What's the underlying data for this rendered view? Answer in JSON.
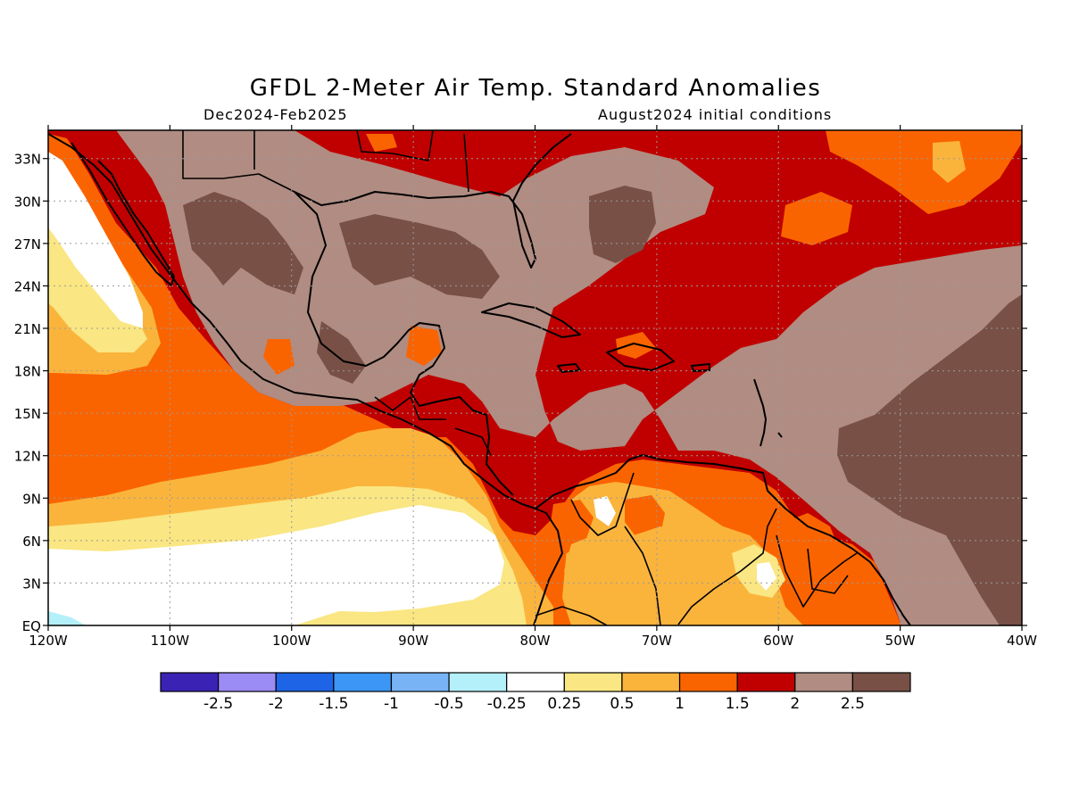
{
  "title": "GFDL 2-Meter Air Temp. Standard Anomalies",
  "subtitle_left": "Dec2024-Feb2025",
  "subtitle_right": "August2024 initial conditions",
  "map": {
    "lon_range": [
      -120,
      -40
    ],
    "lat_range": [
      0,
      35
    ],
    "lat_ticks": [
      {
        "value": 33,
        "label": "33N"
      },
      {
        "value": 30,
        "label": "30N"
      },
      {
        "value": 27,
        "label": "27N"
      },
      {
        "value": 24,
        "label": "24N"
      },
      {
        "value": 21,
        "label": "21N"
      },
      {
        "value": 18,
        "label": "18N"
      },
      {
        "value": 15,
        "label": "15N"
      },
      {
        "value": 12,
        "label": "12N"
      },
      {
        "value": 9,
        "label": "9N"
      },
      {
        "value": 6,
        "label": "6N"
      },
      {
        "value": 3,
        "label": "3N"
      },
      {
        "value": 0,
        "label": "EQ"
      }
    ],
    "lon_ticks": [
      {
        "value": -120,
        "label": "120W"
      },
      {
        "value": -110,
        "label": "110W"
      },
      {
        "value": -100,
        "label": "100W"
      },
      {
        "value": -90,
        "label": "90W"
      },
      {
        "value": -80,
        "label": "80W"
      },
      {
        "value": -70,
        "label": "70W"
      },
      {
        "value": -60,
        "label": "60W"
      },
      {
        "value": -50,
        "label": "50W"
      },
      {
        "value": -40,
        "label": "40W"
      }
    ],
    "grid": "dotted"
  },
  "colorbar": {
    "colors": [
      "#3a22b4",
      "#9b8cf5",
      "#1e64e6",
      "#3c96f5",
      "#78b4f5",
      "#b4f0fa",
      "#ffffff",
      "#fae682",
      "#fab43c",
      "#fa6400",
      "#c00000",
      "#b08c82",
      "#785046"
    ],
    "labels": [
      "-2.5",
      "-2",
      "-1.5",
      "-1",
      "-0.5",
      "-0.25",
      "0.25",
      "0.5",
      "1",
      "1.5",
      "2",
      "2.5"
    ]
  }
}
